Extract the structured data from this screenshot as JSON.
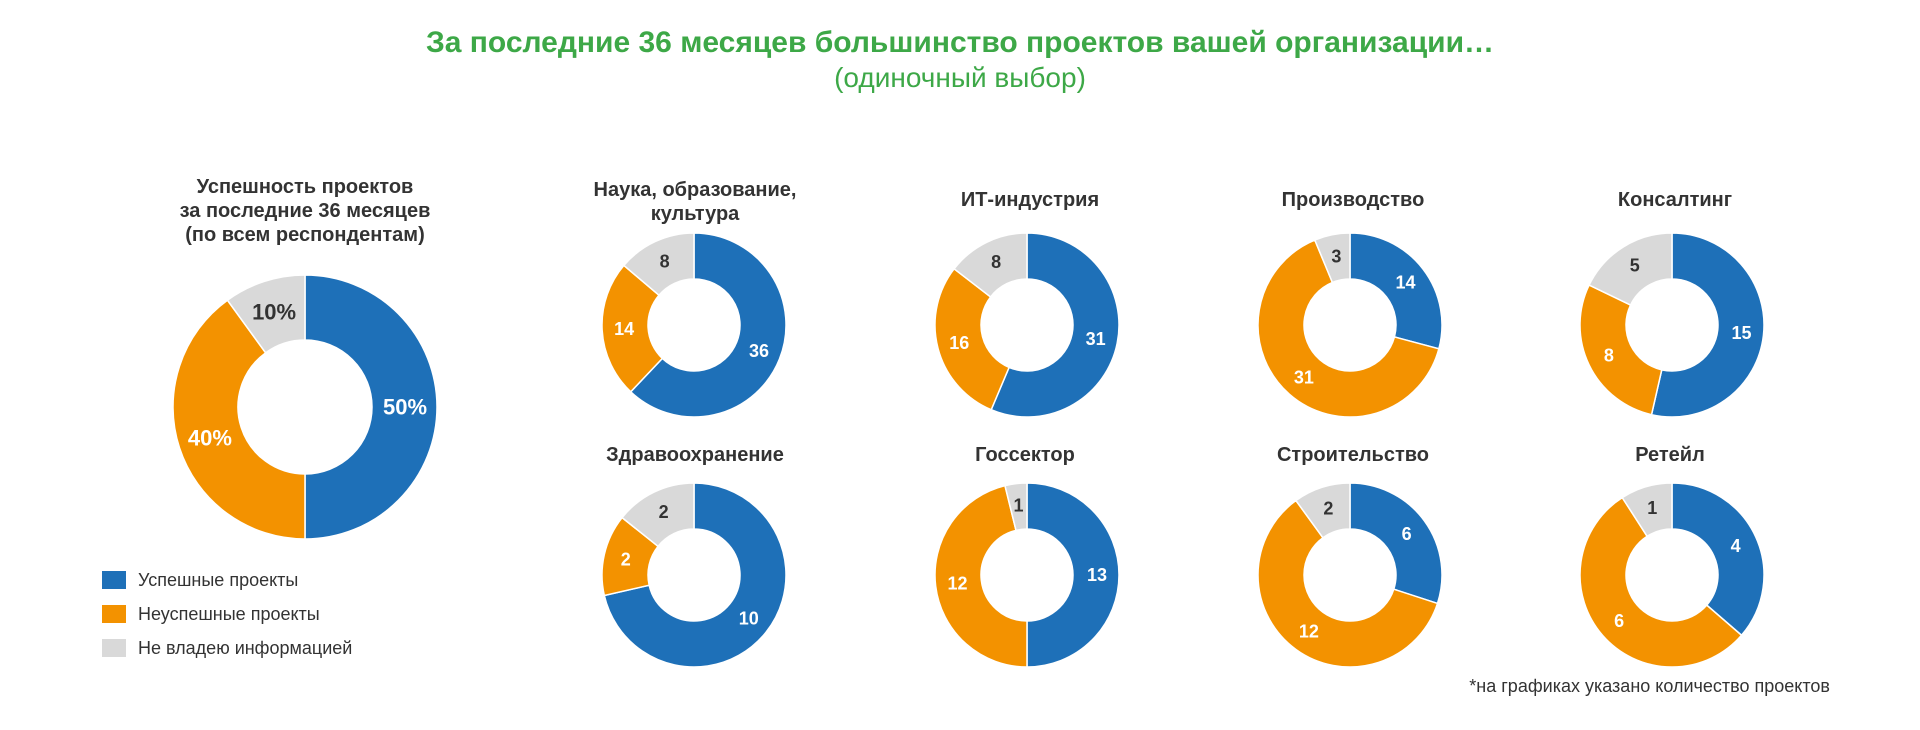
{
  "header": {
    "title": "За последние 36 месяцев большинство проектов вашей организации…",
    "subtitle": "(одиночный выбор)"
  },
  "colors": {
    "success": "#1e70b8",
    "fail": "#f39200",
    "unknown": "#d9d9d9"
  },
  "legend": {
    "success": "Успешные проекты",
    "fail": "Неуспешные проекты",
    "unknown": "Не владею информацией"
  },
  "footnote": "*на графиках указано количество проектов",
  "chart_data": [
    {
      "type": "pie",
      "title_lines": [
        "Успешность проектов",
        "за последние 36 месяцев",
        "(по всем респондентам)"
      ],
      "labels": [
        "50%",
        "40%",
        "10%"
      ],
      "values": [
        50,
        40,
        10
      ],
      "unit": "%"
    },
    {
      "type": "pie",
      "title_lines": [
        "Наука, образование,",
        "культура"
      ],
      "labels": [
        "36",
        "14",
        "8"
      ],
      "values": [
        36,
        14,
        8
      ]
    },
    {
      "type": "pie",
      "title_lines": [
        "ИТ-индустрия"
      ],
      "labels": [
        "31",
        "16",
        "8"
      ],
      "values": [
        31,
        16,
        8
      ]
    },
    {
      "type": "pie",
      "title_lines": [
        "Производство"
      ],
      "labels": [
        "14",
        "31",
        "3"
      ],
      "values": [
        14,
        31,
        3
      ]
    },
    {
      "type": "pie",
      "title_lines": [
        "Консалтинг"
      ],
      "labels": [
        "15",
        "8",
        "5"
      ],
      "values": [
        15,
        8,
        5
      ]
    },
    {
      "type": "pie",
      "title_lines": [
        "Здравоохранение"
      ],
      "labels": [
        "10",
        "2",
        "2"
      ],
      "values": [
        10,
        2,
        2
      ]
    },
    {
      "type": "pie",
      "title_lines": [
        "Госсектор"
      ],
      "labels": [
        "13",
        "12",
        "1"
      ],
      "values": [
        13,
        12,
        1
      ]
    },
    {
      "type": "pie",
      "title_lines": [
        "Строительство"
      ],
      "labels": [
        "6",
        "12",
        "2"
      ],
      "values": [
        6,
        12,
        2
      ]
    },
    {
      "type": "pie",
      "title_lines": [
        "Ретейл"
      ],
      "labels": [
        "4",
        "6",
        "1"
      ],
      "values": [
        4,
        6,
        1
      ]
    }
  ]
}
